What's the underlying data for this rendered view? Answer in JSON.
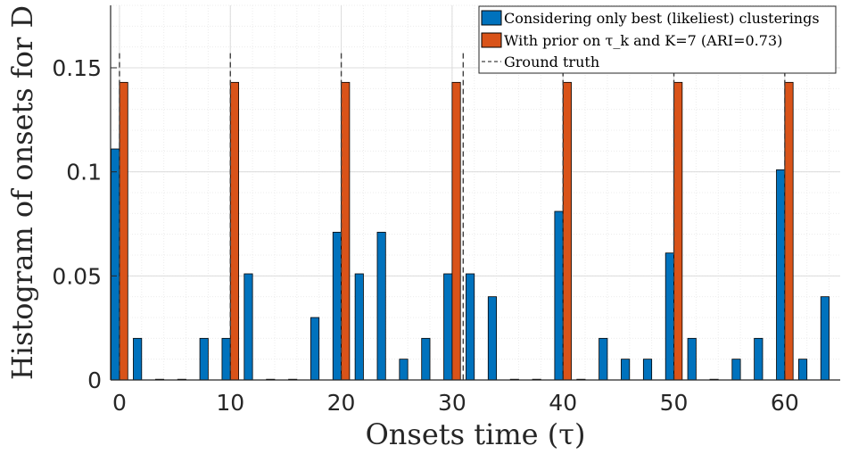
{
  "chart_data": {
    "type": "bar",
    "xlabel": "Onsets time (τ)",
    "ylabel": "Histogram of onsets for D",
    "xlim": [
      -0.8,
      65
    ],
    "ylim": [
      0,
      0.18
    ],
    "x_ticks": [
      0,
      10,
      20,
      30,
      40,
      50,
      60
    ],
    "x_tick_labels": [
      "0",
      "10",
      "20",
      "30",
      "40",
      "50",
      "60"
    ],
    "y_ticks": [
      0,
      0.05,
      0.1,
      0.15
    ],
    "y_tick_labels": [
      "0",
      "0.05",
      "0.1",
      "0.15"
    ],
    "grid": true,
    "legend_position": "top-right",
    "legend_entries": [
      "Considering only best (likeliest) clusterings",
      "With prior on τ_k and K=7 (ARI=0.73)",
      "Ground truth"
    ],
    "series": [
      {
        "name": "Considering only best (likeliest) clusterings",
        "color": "#0072BD",
        "x": [
          0,
          2,
          4,
          6,
          8,
          10,
          12,
          14,
          16,
          18,
          20,
          22,
          24,
          26,
          28,
          30,
          32,
          34,
          36,
          38,
          40,
          42,
          44,
          46,
          48,
          50,
          52,
          54,
          56,
          58,
          60,
          62,
          64
        ],
        "values": [
          0.111,
          0.02,
          0,
          0,
          0.02,
          0.02,
          0.051,
          0,
          0,
          0.03,
          0.071,
          0.051,
          0.071,
          0.01,
          0.02,
          0.051,
          0.051,
          0.04,
          0,
          0,
          0.081,
          0,
          0.02,
          0.01,
          0.01,
          0.061,
          0.02,
          0,
          0.01,
          0.02,
          0.101,
          0.01,
          0.04
        ]
      },
      {
        "name": "With prior on τ_k and K=7 (ARI=0.73)",
        "color": "#D95319",
        "x": [
          0,
          10,
          20,
          30,
          40,
          50,
          60
        ],
        "values": [
          0.143,
          0.143,
          0.143,
          0.143,
          0.143,
          0.143,
          0.143
        ]
      },
      {
        "name": "Ground truth",
        "type": "vline",
        "color": "#404040",
        "x": [
          0,
          10,
          20,
          31,
          40,
          50,
          60
        ],
        "height": 0.157
      }
    ]
  }
}
